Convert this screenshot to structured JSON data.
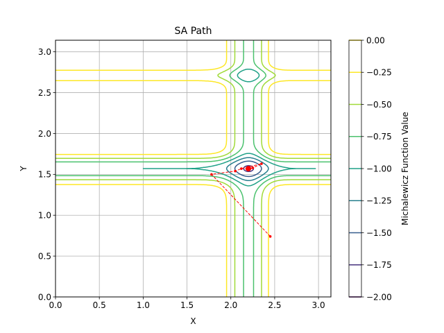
{
  "chart_data": {
    "type": "contour",
    "title": "SA Path",
    "xlabel": "X",
    "ylabel": "Y",
    "xlim": [
      0,
      3.14159
    ],
    "ylim": [
      0,
      3.14159
    ],
    "xticks": [
      "0.0",
      "0.5",
      "1.0",
      "1.5",
      "2.0",
      "2.5",
      "3.0"
    ],
    "xtick_values": [
      0,
      0.5,
      1.0,
      1.5,
      2.0,
      2.5,
      3.0
    ],
    "yticks": [
      "0.0",
      "0.5",
      "1.0",
      "1.5",
      "2.0",
      "2.5",
      "3.0"
    ],
    "ytick_values": [
      0,
      0.5,
      1.0,
      1.5,
      2.0,
      2.5,
      3.0
    ],
    "grid": true,
    "function": "Michalewicz (d=2, m=10)",
    "contour_levels": [
      -2.0,
      -1.75,
      -1.5,
      -1.25,
      -1.0,
      -0.75,
      -0.5,
      -0.25,
      0.0
    ],
    "colorbar": {
      "label": "Michalewicz Function Value",
      "ticks": [
        "0.00",
        "−0.25",
        "−0.50",
        "−0.75",
        "−1.00",
        "−1.25",
        "−1.50",
        "−1.75",
        "−2.00"
      ],
      "tick_values": [
        0.0,
        -0.25,
        -0.5,
        -0.75,
        -1.0,
        -1.25,
        -1.5,
        -1.75,
        -2.0
      ],
      "colors": [
        "#fde725",
        "#a0da39",
        "#4ac16d",
        "#1fa187",
        "#277f8e",
        "#365c8d",
        "#46327e",
        "#440154"
      ]
    },
    "path": {
      "color": "#ff0000",
      "points": [
        [
          2.45,
          0.74
        ],
        [
          1.78,
          1.5
        ],
        [
          2.05,
          1.54
        ],
        [
          2.12,
          1.57
        ],
        [
          2.35,
          1.63
        ],
        [
          2.25,
          1.58
        ],
        [
          2.22,
          1.57
        ],
        [
          2.18,
          1.57
        ],
        [
          2.21,
          1.58
        ],
        [
          2.2,
          1.57
        ],
        [
          2.19,
          1.56
        ],
        [
          2.21,
          1.57
        ],
        [
          2.2,
          1.57
        ]
      ]
    }
  }
}
